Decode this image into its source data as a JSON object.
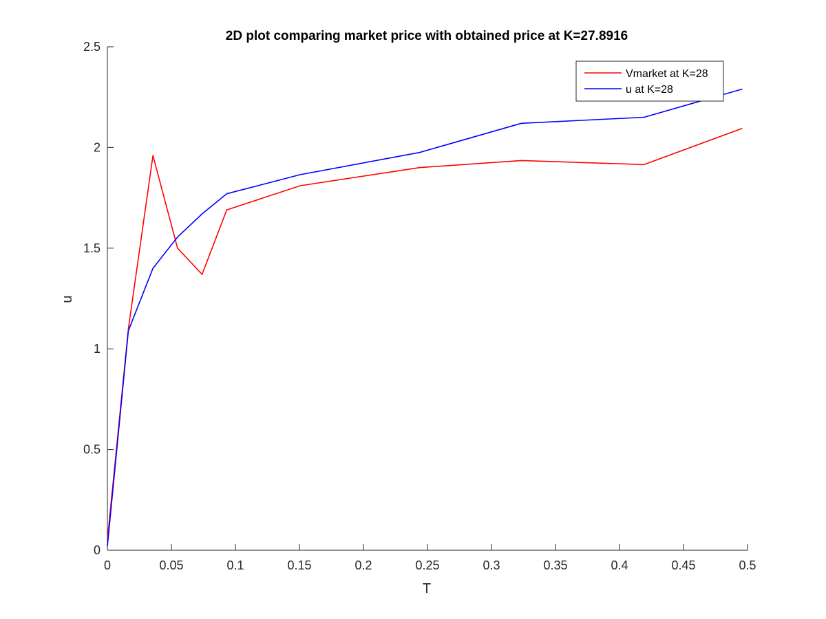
{
  "chart_data": {
    "type": "line",
    "title": "2D plot comparing market price with obtained price at K=27.8916",
    "xlabel": "T",
    "ylabel": "u",
    "xlim": [
      0,
      0.5
    ],
    "ylim": [
      0,
      2.5
    ],
    "xticks": [
      "0",
      "0.05",
      "0.1",
      "0.15",
      "0.2",
      "0.25",
      "0.3",
      "0.35",
      "0.4",
      "0.45",
      "0.5"
    ],
    "yticks": [
      "0",
      "0.5",
      "1",
      "1.5",
      "2",
      "2.5"
    ],
    "grid": false,
    "legend_position": "top-right",
    "series": [
      {
        "name": "Vmarket at K=28",
        "color": "#ff0000",
        "x": [
          0,
          0.0164,
          0.0356,
          0.0548,
          0.074,
          0.0932,
          0.1507,
          0.2438,
          0.3233,
          0.4192,
          0.4959
        ],
        "y": [
          0.05,
          1.1,
          1.96,
          1.5,
          1.37,
          1.69,
          1.81,
          1.9,
          1.935,
          1.915,
          2.095
        ]
      },
      {
        "name": "u at K=28",
        "color": "#0000ff",
        "x": [
          0,
          0.0164,
          0.0356,
          0.0548,
          0.074,
          0.0932,
          0.1507,
          0.2438,
          0.3233,
          0.4192,
          0.4959
        ],
        "y": [
          0.02,
          1.09,
          1.4,
          1.555,
          1.67,
          1.77,
          1.865,
          1.975,
          2.12,
          2.15,
          2.29
        ]
      }
    ]
  }
}
